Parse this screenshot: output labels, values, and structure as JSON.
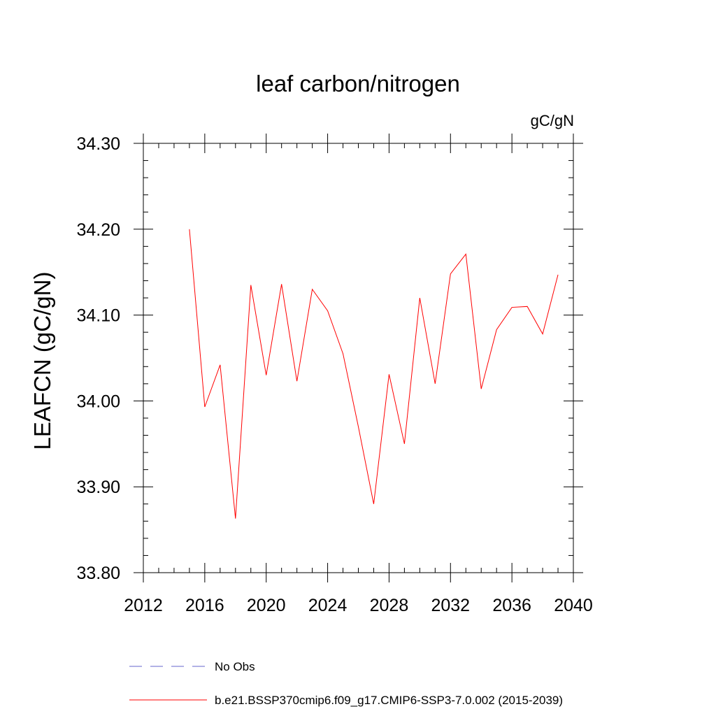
{
  "chart_data": {
    "type": "line",
    "title": "leaf carbon/nitrogen",
    "units_label": "gC/gN",
    "ylabel": "LEAFCN  (gC/gN)",
    "xlabel": "",
    "xlim": [
      2012,
      2040
    ],
    "ylim": [
      33.8,
      34.3
    ],
    "xticks": [
      2012,
      2016,
      2020,
      2024,
      2028,
      2032,
      2036,
      2040
    ],
    "xtick_labels": [
      "2012",
      "2016",
      "2020",
      "2024",
      "2028",
      "2032",
      "2036",
      "2040"
    ],
    "yticks": [
      33.8,
      33.9,
      34.0,
      34.1,
      34.2,
      34.3
    ],
    "ytick_labels": [
      "33.80",
      "33.90",
      "34.00",
      "34.10",
      "34.20",
      "34.30"
    ],
    "x_minor_step": 1,
    "y_minor_step": 0.02,
    "grid": false,
    "legend_position": "bottom",
    "series": [
      {
        "name": "b.e21.BSSP370cmip6.f09_g17.CMIP6-SSP3-7.0.002 (2015-2039)",
        "color": "#ff0000",
        "style": "solid",
        "x": [
          2015,
          2016,
          2017,
          2018,
          2019,
          2020,
          2021,
          2022,
          2023,
          2024,
          2025,
          2026,
          2027,
          2028,
          2029,
          2030,
          2031,
          2032,
          2033,
          2034,
          2035,
          2036,
          2037,
          2038,
          2039
        ],
        "values": [
          34.2,
          33.993,
          34.042,
          33.863,
          34.135,
          34.03,
          34.136,
          34.023,
          34.13,
          34.105,
          34.055,
          33.97,
          33.88,
          34.031,
          33.95,
          34.12,
          34.02,
          34.148,
          34.171,
          34.014,
          34.083,
          34.109,
          34.11,
          34.078,
          34.147
        ]
      },
      {
        "name": "No Obs",
        "color": "#6666cc",
        "style": "dashed",
        "x": [],
        "values": []
      }
    ]
  }
}
